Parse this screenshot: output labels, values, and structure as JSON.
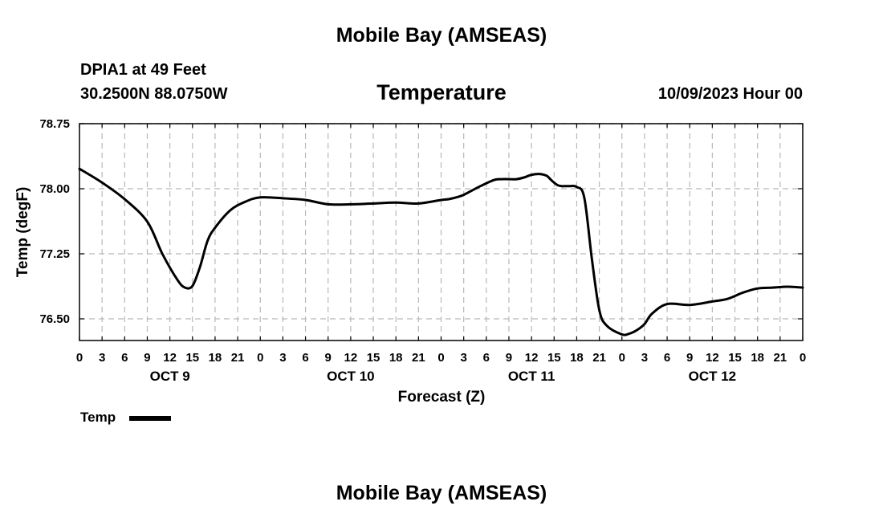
{
  "header": {
    "title": "Mobile Bay (AMSEAS)",
    "station": "DPIA1 at 49 Feet",
    "coords": "30.2500N  88.0750W",
    "variable": "Temperature",
    "run_time": "10/09/2023 Hour 00"
  },
  "footer": {
    "title": "Mobile Bay (AMSEAS)"
  },
  "legend": {
    "label": "Temp",
    "color": "#000000"
  },
  "chart_data": {
    "type": "line",
    "title": "Temperature",
    "xlabel": "Forecast (Z)",
    "ylabel": "Temp (degF)",
    "x_unit": "forecast hour",
    "xlim": [
      0,
      96
    ],
    "ylim": [
      76.25,
      78.75
    ],
    "y_ticks": [
      "76.50",
      "77.25",
      "78.00",
      "78.75"
    ],
    "y_tick_values": [
      76.5,
      77.25,
      78.0,
      78.75
    ],
    "x_tick_labels": [
      "0",
      "3",
      "6",
      "9",
      "12",
      "15",
      "18",
      "21",
      "0",
      "3",
      "6",
      "9",
      "12",
      "15",
      "18",
      "21",
      "0",
      "3",
      "6",
      "9",
      "12",
      "15",
      "18",
      "21",
      "0",
      "3",
      "6",
      "9",
      "12",
      "15",
      "18",
      "21",
      "0"
    ],
    "day_labels": [
      {
        "label": "OCT 9",
        "hour": 12
      },
      {
        "label": "OCT 10",
        "hour": 36
      },
      {
        "label": "OCT 11",
        "hour": 60
      },
      {
        "label": "OCT 12",
        "hour": 84
      }
    ],
    "grid": true,
    "legend_position": "bottom-left",
    "series": [
      {
        "name": "Temp",
        "color": "#000000",
        "x": [
          0,
          3,
          6,
          9,
          11,
          13,
          14,
          15,
          16,
          17,
          18,
          20,
          22,
          24,
          27,
          30,
          33,
          36,
          39,
          42,
          45,
          48,
          49,
          50,
          51,
          53,
          55,
          56,
          57,
          58,
          59,
          60,
          61,
          62,
          62.5,
          63,
          63.5,
          64,
          65,
          66,
          67,
          68,
          69,
          70,
          72,
          73,
          74,
          75,
          76,
          78,
          81,
          84,
          86,
          88,
          90,
          92,
          94,
          96
        ],
        "y": [
          78.23,
          78.07,
          77.88,
          77.62,
          77.25,
          76.95,
          76.86,
          76.88,
          77.1,
          77.4,
          77.55,
          77.75,
          77.85,
          77.9,
          77.89,
          77.87,
          77.82,
          77.82,
          77.83,
          77.84,
          77.83,
          77.87,
          77.88,
          77.9,
          77.93,
          78.02,
          78.1,
          78.11,
          78.11,
          78.11,
          78.13,
          78.16,
          78.17,
          78.15,
          78.11,
          78.07,
          78.04,
          78.03,
          78.03,
          78.02,
          77.9,
          77.2,
          76.6,
          76.42,
          76.32,
          76.33,
          76.37,
          76.44,
          76.56,
          76.67,
          76.66,
          76.7,
          76.73,
          76.8,
          76.85,
          76.86,
          76.87,
          76.86
        ]
      }
    ]
  }
}
